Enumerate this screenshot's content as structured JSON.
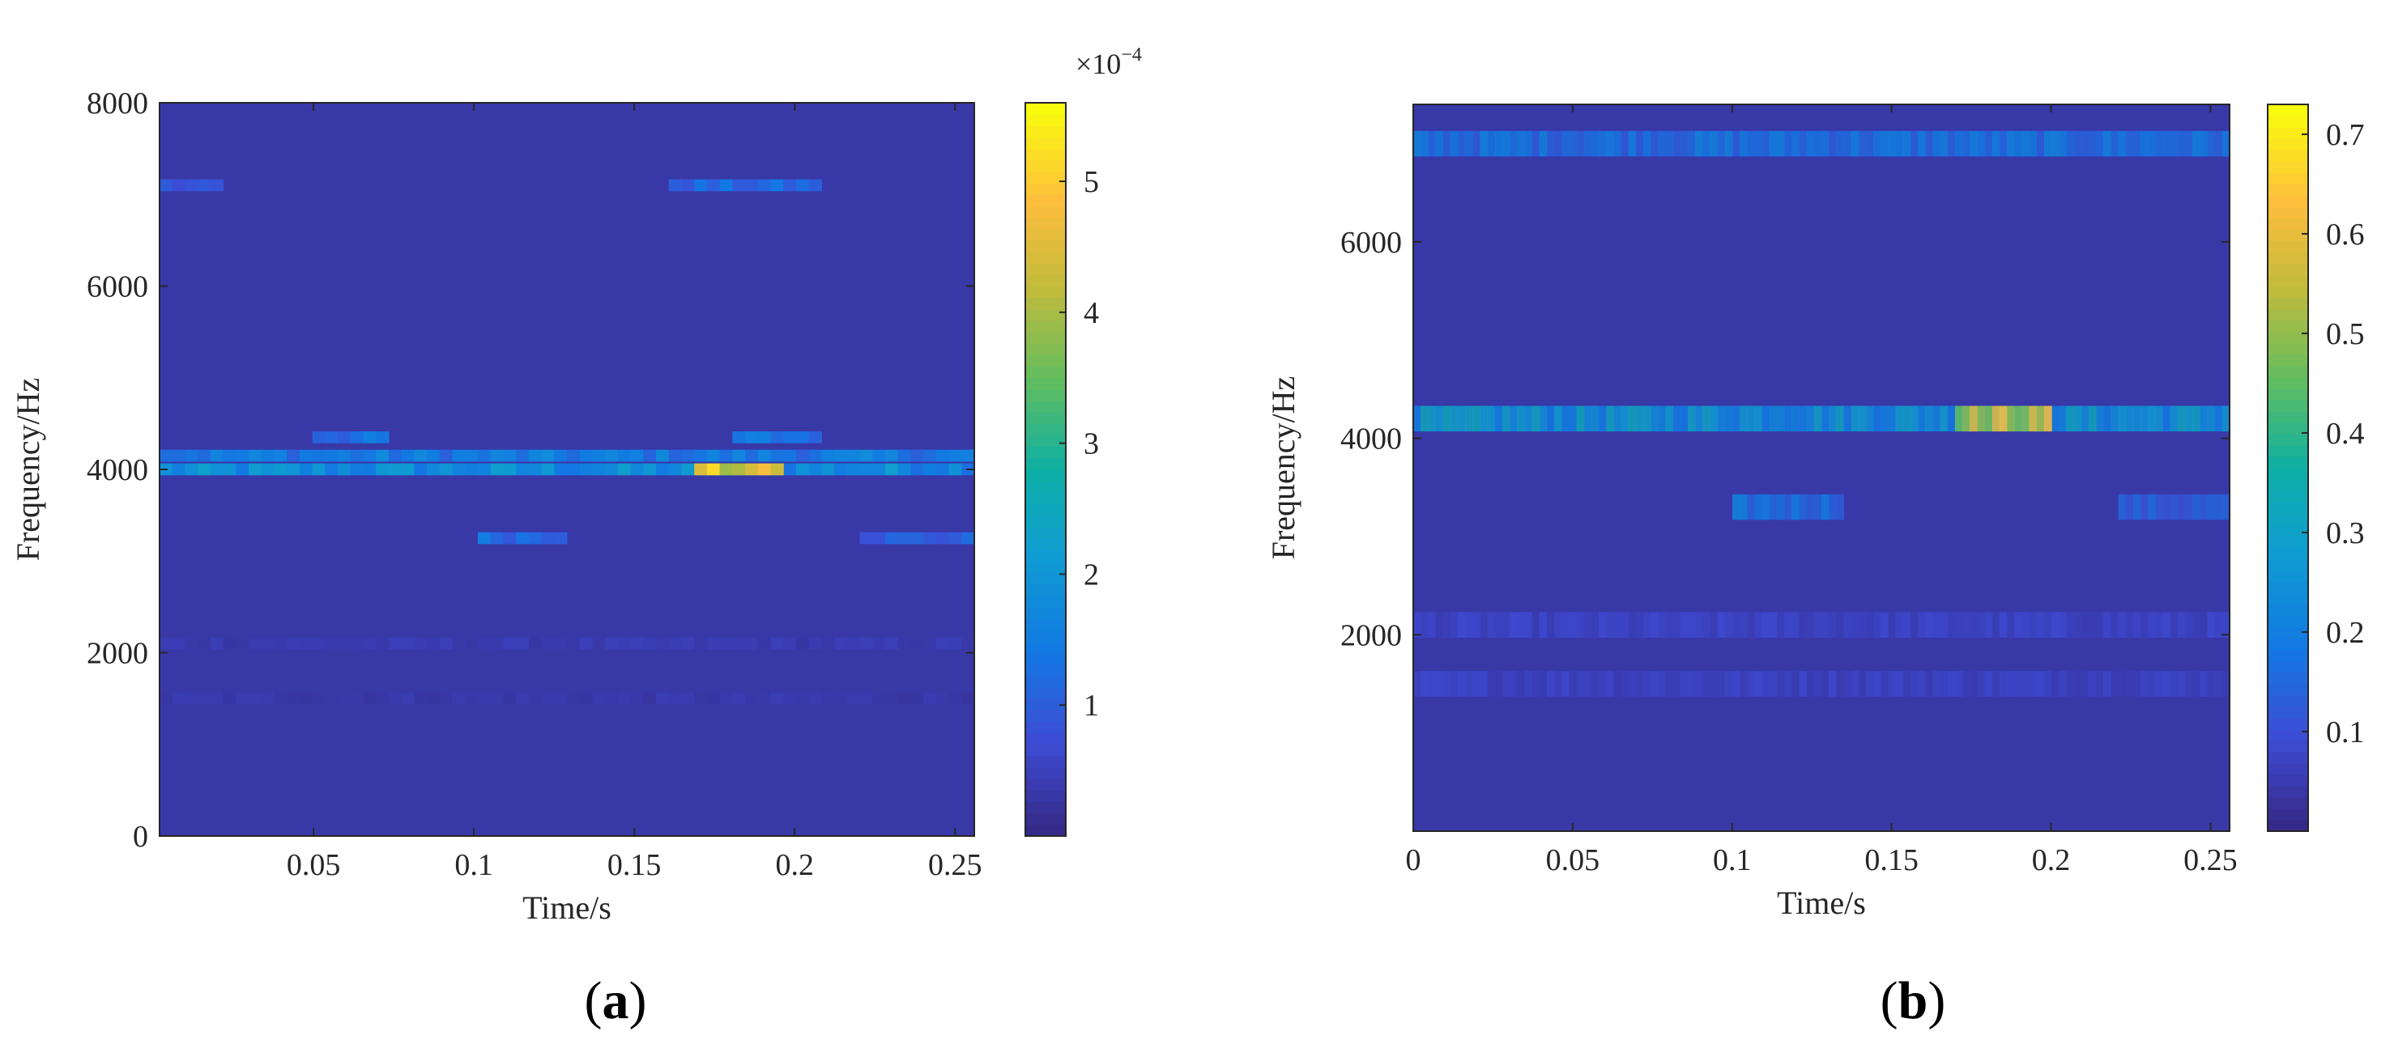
{
  "chart_data": [
    {
      "type": "heatmap",
      "panel_label": "a",
      "xlabel": "Time/s",
      "ylabel": "Frequency/Hz",
      "xlim": [
        0.002,
        0.256
      ],
      "ylim": [
        0,
        8000
      ],
      "x_ticks": [
        0.05,
        0.1,
        0.15,
        0.2,
        0.25
      ],
      "x_tick_labels": [
        "0.05",
        "0.1",
        "0.15",
        "0.2",
        "0.25"
      ],
      "y_ticks": [
        0,
        2000,
        4000,
        6000,
        8000
      ],
      "y_tick_labels": [
        "0",
        "2000",
        "4000",
        "6000",
        "8000"
      ],
      "colormap": "parula",
      "colorbar": {
        "range": [
          0,
          5.6
        ],
        "ticks": [
          1,
          2,
          3,
          4,
          5
        ],
        "tick_labels": [
          "1",
          "2",
          "3",
          "4",
          "5"
        ],
        "exponent_base": "×10",
        "exponent_power": "−4"
      },
      "features": [
        {
          "description_free": true,
          "freq": 4000,
          "t_range": [
            0.0,
            0.256
          ],
          "level": 0.4
        },
        {
          "freq": 4150,
          "t_range": [
            0.0,
            0.256
          ],
          "level": 0.32
        },
        {
          "freq": 4000,
          "t_range": [
            0.17,
            0.195
          ],
          "level": 0.95
        },
        {
          "freq": 4350,
          "t_range": [
            0.05,
            0.075
          ],
          "level": 0.28
        },
        {
          "freq": 4350,
          "t_range": [
            0.18,
            0.21
          ],
          "level": 0.3
        },
        {
          "freq": 3250,
          "t_range": [
            0.1,
            0.13
          ],
          "level": 0.28
        },
        {
          "freq": 3250,
          "t_range": [
            0.22,
            0.256
          ],
          "level": 0.22
        },
        {
          "freq": 7100,
          "t_range": [
            0.16,
            0.21
          ],
          "level": 0.25
        },
        {
          "freq": 7100,
          "t_range": [
            0.0,
            0.02
          ],
          "level": 0.18
        },
        {
          "freq": 2100,
          "t_range": [
            0.0,
            0.256
          ],
          "level": 0.08
        },
        {
          "freq": 1500,
          "t_range": [
            0.0,
            0.256
          ],
          "level": 0.07
        }
      ]
    },
    {
      "type": "heatmap",
      "panel_label": "b",
      "xlabel": "Time/s",
      "ylabel": "Frequency/Hz",
      "xlim": [
        0,
        0.256
      ],
      "ylim": [
        0,
        7400
      ],
      "x_ticks": [
        0,
        0.05,
        0.1,
        0.15,
        0.2,
        0.25
      ],
      "x_tick_labels": [
        "0",
        "0.05",
        "0.1",
        "0.15",
        "0.2",
        "0.25"
      ],
      "y_ticks": [
        2000,
        4000,
        6000
      ],
      "y_tick_labels": [
        "2000",
        "4000",
        "6000"
      ],
      "colormap": "parula",
      "colorbar": {
        "range": [
          0,
          0.73
        ],
        "ticks": [
          0.1,
          0.2,
          0.3,
          0.4,
          0.5,
          0.6,
          0.7
        ],
        "tick_labels": [
          "0.1",
          "0.2",
          "0.3",
          "0.4",
          "0.5",
          "0.6",
          "0.7"
        ]
      },
      "features": [
        {
          "freq": 4200,
          "t_range": [
            0.0,
            0.256
          ],
          "level": 0.45
        },
        {
          "freq": 4200,
          "t_range": [
            0.17,
            0.2
          ],
          "level": 0.9
        },
        {
          "freq": 3300,
          "t_range": [
            0.1,
            0.135
          ],
          "level": 0.3
        },
        {
          "freq": 3300,
          "t_range": [
            0.22,
            0.256
          ],
          "level": 0.22
        },
        {
          "freq": 7000,
          "t_range": [
            0.0,
            0.256
          ],
          "level": 0.3
        },
        {
          "freq": 2100,
          "t_range": [
            0.0,
            0.256
          ],
          "level": 0.12
        },
        {
          "freq": 1500,
          "t_range": [
            0.0,
            0.256
          ],
          "level": 0.12
        }
      ]
    }
  ]
}
